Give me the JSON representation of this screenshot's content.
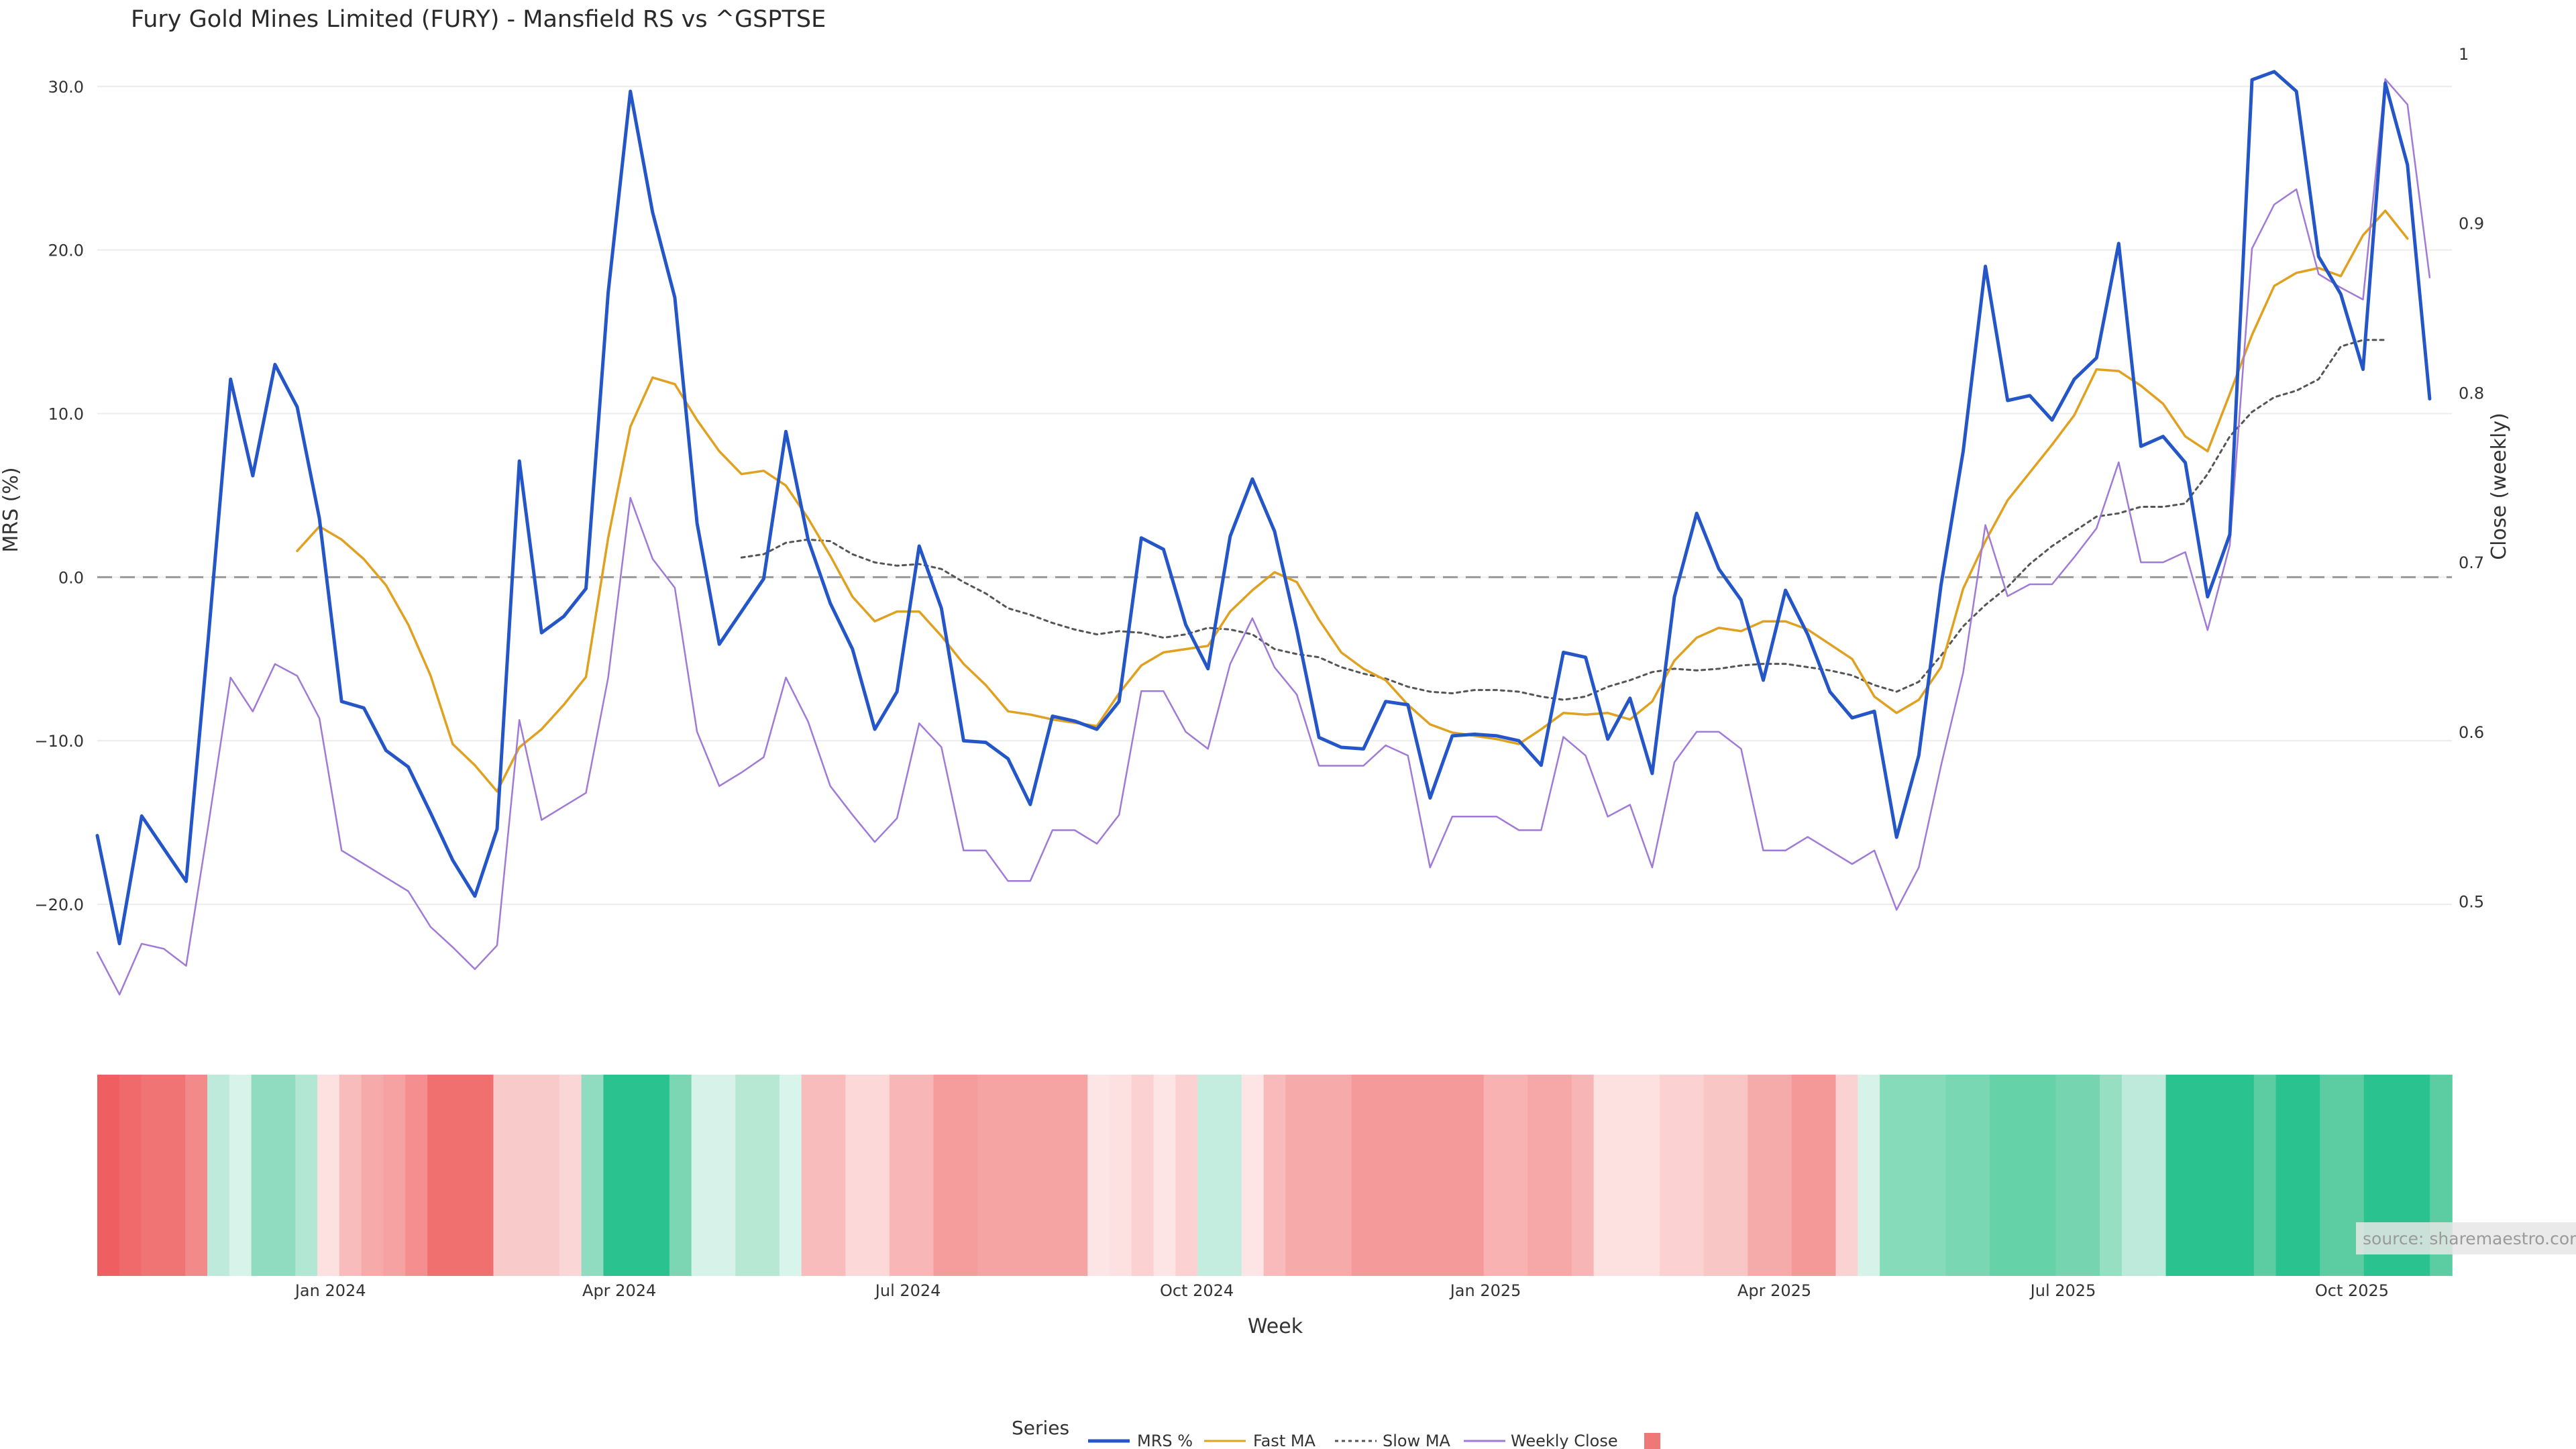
{
  "chart_data": {
    "type": "line",
    "title": "Fury Gold Mines Limited (FURY) - Mansfield RS vs ^GSPTSE",
    "xlabel": "Week",
    "ylabel_left": "MRS (%)",
    "ylabel_right": "Close (weekly)",
    "y_left_ticks": [
      "30.0",
      "20.0",
      "10.0",
      "0.0",
      "−10.0",
      "−20.0"
    ],
    "y_right_ticks": [
      "1",
      "0.9",
      "0.8",
      "0.7",
      "0.6",
      "0.5"
    ],
    "ylim_left": [
      -25,
      32
    ],
    "ylim_right": [
      0.45,
      1.0
    ],
    "x_ticks": [
      "Jan 2024",
      "Apr 2024",
      "Jul 2024",
      "Oct 2024",
      "Jan 2025",
      "Apr 2025",
      "Jul 2025",
      "Oct 2025"
    ],
    "x_tick_week_index": [
      10.5,
      23.5,
      36.5,
      49.5,
      62.5,
      75.5,
      88.5,
      101.5
    ],
    "weeks": 107,
    "zero_line": 0,
    "grid": true,
    "legend_position": "bottom-center",
    "legend_title": "Series",
    "source_note": "source: sharemaestro.com",
    "colors": {
      "mrs": "#2456c7",
      "fast_ma": "#e0a020",
      "slow_ma": "#555555",
      "weekly_close": "#a07ad6",
      "heat_legend": "#ee7777",
      "zero_line": "#999999"
    },
    "series": [
      {
        "name": "MRS %",
        "axis": "left",
        "style": "solid-thick",
        "values": [
          -15.8,
          -22.4,
          -14.6,
          -16.6,
          -18.6,
          -3.7,
          12.1,
          6.2,
          13.0,
          10.4,
          3.6,
          -7.6,
          -8.0,
          -10.6,
          -11.6,
          -14.4,
          -17.3,
          -19.5,
          -15.4,
          7.1,
          -3.4,
          -2.4,
          -0.7,
          17.4,
          29.7,
          22.3,
          17.1,
          3.3,
          -4.1,
          -2.1,
          -0.1,
          8.9,
          2.3,
          -1.6,
          -4.4,
          -9.3,
          -7.0,
          1.9,
          -1.9,
          -10.0,
          -10.1,
          -11.1,
          -13.9,
          -8.5,
          -8.8,
          -9.3,
          -7.6,
          2.4,
          1.7,
          -2.9,
          -5.6,
          2.5,
          6.0,
          2.8,
          -3.2,
          -9.8,
          -10.4,
          -10.5,
          -7.6,
          -7.8,
          -13.5,
          -9.7,
          -9.6,
          -9.7,
          -10.0,
          -11.5,
          -4.6,
          -4.9,
          -9.9,
          -7.4,
          -12.0,
          -1.2,
          3.9,
          0.5,
          -1.4,
          -6.3,
          -0.8,
          -3.5,
          -7.0,
          -8.6,
          -8.2,
          -15.9,
          -10.9,
          -0.5,
          7.7,
          19.0,
          10.8,
          11.1,
          9.6,
          12.1,
          13.4,
          20.4,
          8.0,
          8.6,
          7.0,
          -1.2,
          2.6,
          30.4,
          30.9,
          29.7,
          19.6,
          17.3,
          12.7,
          30.2,
          25.2,
          10.9
        ]
      },
      {
        "name": "Fast MA",
        "axis": "left",
        "style": "solid",
        "values": [
          null,
          null,
          null,
          null,
          null,
          null,
          null,
          null,
          null,
          1.6,
          3.1,
          2.3,
          1.1,
          -0.5,
          -2.9,
          -6.0,
          -10.2,
          -11.5,
          -13.1,
          -10.4,
          -9.3,
          -7.8,
          -6.1,
          2.4,
          9.2,
          12.2,
          11.8,
          9.6,
          7.7,
          6.3,
          6.5,
          5.6,
          3.6,
          1.3,
          -1.2,
          -2.7,
          -2.1,
          -2.1,
          -3.6,
          -5.3,
          -6.6,
          -8.2,
          -8.4,
          -8.7,
          -8.9,
          -9.1,
          -7.1,
          -5.4,
          -4.6,
          -4.4,
          -4.2,
          -2.1,
          -0.8,
          0.3,
          -0.3,
          -2.6,
          -4.6,
          -5.6,
          -6.3,
          -7.8,
          -9.0,
          -9.5,
          -9.7,
          -9.9,
          -10.2,
          -9.3,
          -8.3,
          -8.4,
          -8.3,
          -8.7,
          -7.6,
          -5.1,
          -3.7,
          -3.1,
          -3.3,
          -2.7,
          -2.7,
          -3.2,
          -4.1,
          -5.0,
          -7.3,
          -8.3,
          -7.5,
          -5.5,
          -0.7,
          2.2,
          4.7,
          6.4,
          8.1,
          9.9,
          12.7,
          12.6,
          11.7,
          10.6,
          8.6,
          7.7,
          11.2,
          14.8,
          17.8,
          18.6,
          18.9,
          18.4,
          20.9,
          22.4,
          20.7
        ]
      },
      {
        "name": "Slow MA",
        "axis": "left",
        "style": "dotted",
        "values": [
          null,
          null,
          null,
          null,
          null,
          null,
          null,
          null,
          null,
          null,
          null,
          null,
          null,
          null,
          null,
          null,
          null,
          null,
          null,
          null,
          null,
          null,
          null,
          null,
          null,
          null,
          null,
          null,
          null,
          1.2,
          1.4,
          2.1,
          2.3,
          2.2,
          1.4,
          0.9,
          0.7,
          0.8,
          0.5,
          -0.3,
          -1.0,
          -1.9,
          -2.3,
          -2.8,
          -3.2,
          -3.5,
          -3.3,
          -3.4,
          -3.7,
          -3.5,
          -3.1,
          -3.2,
          -3.5,
          -4.4,
          -4.7,
          -4.9,
          -5.5,
          -5.9,
          -6.2,
          -6.7,
          -7.0,
          -7.1,
          -6.9,
          -6.9,
          -7.0,
          -7.3,
          -7.5,
          -7.3,
          -6.7,
          -6.3,
          -5.8,
          -5.6,
          -5.7,
          -5.6,
          -5.4,
          -5.3,
          -5.3,
          -5.5,
          -5.7,
          -6.0,
          -6.6,
          -7.0,
          -6.4,
          -4.8,
          -3.0,
          -1.7,
          -0.6,
          0.8,
          1.9,
          2.8,
          3.7,
          3.9,
          4.3,
          4.3,
          4.5,
          6.3,
          8.6,
          10.1,
          11.0,
          11.4,
          12.1,
          14.1,
          14.5,
          14.5
        ]
      },
      {
        "name": "Weekly Close",
        "axis": "right",
        "style": "thin",
        "values": [
          0.47,
          0.445,
          0.475,
          0.472,
          0.462,
          0.545,
          0.632,
          0.612,
          0.64,
          0.633,
          0.608,
          0.53,
          0.522,
          0.514,
          0.506,
          0.485,
          0.473,
          0.46,
          0.474,
          0.607,
          0.548,
          0.556,
          0.564,
          0.632,
          0.738,
          0.702,
          0.685,
          0.6,
          0.568,
          0.576,
          0.585,
          0.632,
          0.606,
          0.568,
          0.551,
          0.535,
          0.549,
          0.605,
          0.591,
          0.53,
          0.53,
          0.512,
          0.512,
          0.542,
          0.542,
          0.534,
          0.551,
          0.624,
          0.624,
          0.6,
          0.59,
          0.64,
          0.667,
          0.638,
          0.622,
          0.58,
          0.58,
          0.58,
          0.592,
          0.586,
          0.52,
          0.55,
          0.55,
          0.55,
          0.542,
          0.542,
          0.597,
          0.586,
          0.55,
          0.557,
          0.52,
          0.582,
          0.6,
          0.6,
          0.59,
          0.53,
          0.53,
          0.538,
          0.53,
          0.522,
          0.53,
          0.495,
          0.52,
          0.58,
          0.635,
          0.722,
          0.68,
          0.687,
          0.687,
          0.703,
          0.72,
          0.759,
          0.7,
          0.7,
          0.706,
          0.66,
          0.71,
          0.885,
          0.911,
          0.92,
          0.87,
          0.862,
          0.855,
          0.985,
          0.97,
          0.868
        ]
      }
    ],
    "heat_strip": {
      "description": "per-week colored strip (red = negative MRS, green = positive MRS)",
      "colors": [
        "#ef5e60",
        "#f06a6b",
        "#f07474",
        "#f07474",
        "#f38a8a",
        "#bdeadb",
        "#d8f4ea",
        "#8fdcc0",
        "#8fdcc0",
        "#b2e7d3",
        "#fde0e0",
        "#f8bcbc",
        "#f6aaaa",
        "#f7a2a2",
        "#f58f8f",
        "#f07070",
        "#f07070",
        "#f07070",
        "#f9caca",
        "#f9caca",
        "#f9caca",
        "#fbd6d6",
        "#8fdcc0",
        "#2ac28e",
        "#2ac28e",
        "#2ac28e",
        "#7cd6b4",
        "#d7f3e9",
        "#d7f3e9",
        "#b6e8d4",
        "#b6e8d4",
        "#d9f4ea",
        "#f8bcbc",
        "#f8bcbc",
        "#fcd8d8",
        "#fcd8d8",
        "#f8b6b6",
        "#f8b6b6",
        "#f59c9c",
        "#f59c9c",
        "#f5a3a3",
        "#f5a3a3",
        "#f5a3a3",
        "#f5a3a3",
        "#f5a3a3",
        "#fde5e5",
        "#fde0e0",
        "#fbd1d1",
        "#fde5e5",
        "#fbd1d1",
        "#c4ede0",
        "#c4ede0",
        "#fde5e5",
        "#f8baba",
        "#f6aaaa",
        "#f6aaaa",
        "#f6aaaa",
        "#f59a9a",
        "#f59a9a",
        "#f59a9a",
        "#f59a9a",
        "#f59a9a",
        "#f59a9a",
        "#f8b2b2",
        "#f8b2b2",
        "#f6a8a8",
        "#f6a8a8",
        "#f8b5b5",
        "#fde0e0",
        "#fde0e0",
        "#fde0e0",
        "#fbd1d1",
        "#fbd1d1",
        "#f9c6c6",
        "#f9c6c6",
        "#f6abab",
        "#f6abab",
        "#f59898",
        "#f59898",
        "#fad2d2",
        "#d7f3e9",
        "#86dbbb",
        "#86dbbb",
        "#86dbbb",
        "#7ad7b3",
        "#7ad7b3",
        "#66d2a8",
        "#66d2a8",
        "#66d2a8",
        "#76d5b0",
        "#76d5b0",
        "#96dfc3",
        "#bdeadb",
        "#bdeadb",
        "#2ac28e",
        "#2ac28e",
        "#2ac28e",
        "#2ac28e",
        "#5ccda3",
        "#2ac28e",
        "#2ac28e",
        "#5ccda3",
        "#5ccda3",
        "#2ac28e",
        "#2ac28e",
        "#2ac28e",
        "#5ccda3"
      ]
    }
  },
  "legend": {
    "title": "Series",
    "items": [
      {
        "label": "MRS %",
        "style": "line"
      },
      {
        "label": "Fast MA",
        "style": "line"
      },
      {
        "label": "Slow MA",
        "style": "dotted"
      },
      {
        "label": "Weekly Close",
        "style": "line"
      },
      {
        "label": "",
        "style": "square"
      }
    ]
  }
}
